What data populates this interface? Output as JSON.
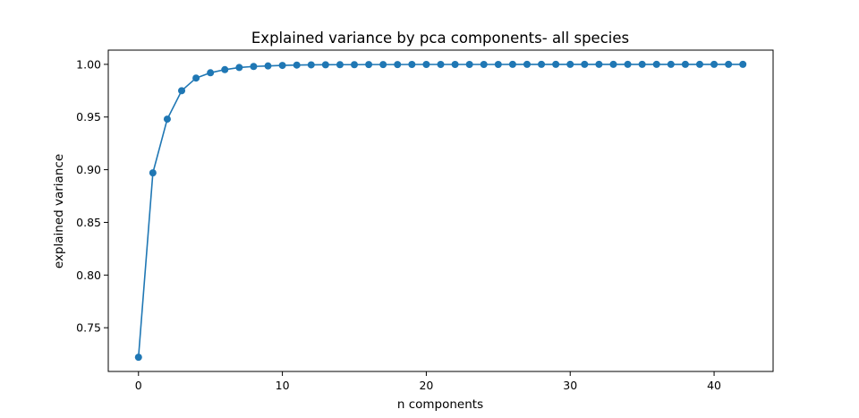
{
  "chart_data": {
    "type": "line",
    "title": "Explained variance by pca components- all species",
    "xlabel": "n components",
    "ylabel": "explained variance",
    "xlim": [
      -2.1,
      44.1
    ],
    "ylim": [
      0.7085,
      1.0135
    ],
    "xticks": [
      0,
      10,
      20,
      30,
      40
    ],
    "xtick_labels": [
      "0",
      "10",
      "20",
      "30",
      "40"
    ],
    "yticks": [
      0.75,
      0.8,
      0.85,
      0.9,
      0.95,
      1.0
    ],
    "ytick_labels": [
      "0.75",
      "0.80",
      "0.85",
      "0.90",
      "0.95",
      "1.00"
    ],
    "grid": false,
    "legend": "none",
    "color": "#1f77b4",
    "marker": "circle",
    "series": [
      {
        "x": [
          0,
          1,
          2,
          3,
          4,
          5,
          6,
          7,
          8,
          9,
          10,
          11,
          12,
          13,
          14,
          15,
          16,
          17,
          18,
          19,
          20,
          21,
          22,
          23,
          24,
          25,
          26,
          27,
          28,
          29,
          30,
          31,
          32,
          33,
          34,
          35,
          36,
          37,
          38,
          39,
          40,
          41,
          42
        ],
        "values": [
          0.722,
          0.897,
          0.948,
          0.975,
          0.987,
          0.992,
          0.995,
          0.997,
          0.998,
          0.9985,
          0.999,
          0.9993,
          0.9995,
          0.9996,
          0.9997,
          0.9997,
          0.9998,
          0.9998,
          0.9998,
          0.9999,
          0.9999,
          0.9999,
          0.9999,
          0.9999,
          0.9999,
          0.9999,
          1.0,
          1.0,
          1.0,
          1.0,
          1.0,
          1.0,
          1.0,
          1.0,
          1.0,
          1.0,
          1.0,
          1.0,
          1.0,
          1.0,
          1.0,
          1.0,
          1.0
        ]
      }
    ]
  }
}
